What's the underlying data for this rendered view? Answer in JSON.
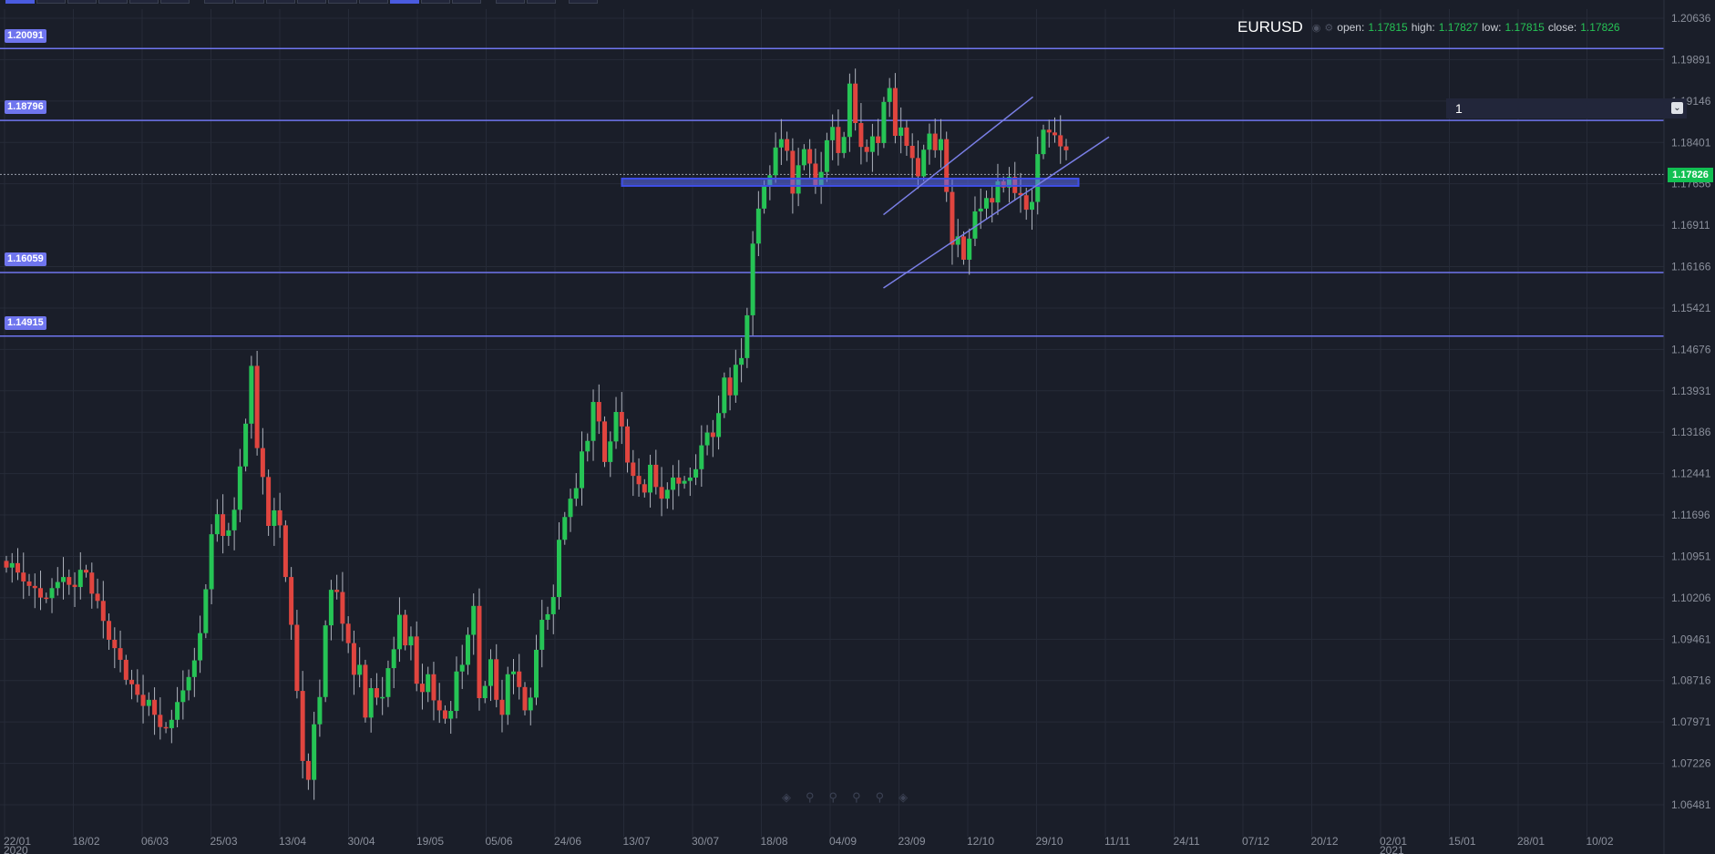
{
  "app": {
    "symbol": "EURUSD",
    "interval_value": "1"
  },
  "ohlc": {
    "open_label": "open:",
    "open": "1.17815",
    "high_label": "high:",
    "high": "1.17827",
    "low_label": "low:",
    "low": "1.17815",
    "close_label": "close:",
    "close": "1.17826"
  },
  "icons": [
    "eye-icon",
    "settings-icon",
    "chevron-down-icon",
    "draw-tool-icon"
  ],
  "colors": {
    "background": "#1a1e29",
    "grid": "#262b38",
    "up": "#26c455",
    "down": "#e0453f",
    "level_line": "#6f75ee",
    "channel_line": "#7a7fe6",
    "zone_fill": "#5b6af0",
    "current_price": "#12c052"
  },
  "levels": [
    {
      "price": 1.20091,
      "label": "1.20091"
    },
    {
      "price": 1.18796,
      "label": "1.18796"
    },
    {
      "price": 1.16059,
      "label": "1.16059"
    },
    {
      "price": 1.14915,
      "label": "1.14915"
    }
  ],
  "current_price": {
    "price": 1.17826,
    "label": "1.17826"
  },
  "chart_data": {
    "type": "candlestick",
    "symbol": "EURUSD",
    "yaxis_ticks": [
      "1.20636",
      "1.19891",
      "1.19146",
      "1.18401",
      "1.17656",
      "1.16911",
      "1.16166",
      "1.15421",
      "1.14676",
      "1.13931",
      "1.13186",
      "1.12441",
      "1.11696",
      "1.10951",
      "1.10206",
      "1.09461",
      "1.08716",
      "1.07971",
      "1.07226",
      "1.06481"
    ],
    "xaxis_ticks": [
      "22/01",
      "18/02",
      "06/03",
      "25/03",
      "13/04",
      "30/04",
      "19/05",
      "05/06",
      "24/06",
      "13/07",
      "30/07",
      "18/08",
      "04/09",
      "23/09",
      "12/10",
      "29/10",
      "11/11",
      "24/11",
      "07/12",
      "20/12",
      "02/01",
      "15/01",
      "28/01",
      "10/02"
    ],
    "year_labels": [
      "2020",
      "2021"
    ],
    "ylim": [
      1.0623,
      1.2088
    ],
    "grid": true,
    "horizontal_levels": [
      1.20091,
      1.18796,
      1.16059,
      1.14915
    ],
    "zone": {
      "from": "13/07",
      "to": "05/11",
      "low": 1.1762,
      "high": 1.1775
    },
    "channel": {
      "upper": [
        {
          "x": "22/09",
          "y": 1.171
        },
        {
          "x": "29/10",
          "y": 1.1922
        }
      ],
      "lower": [
        {
          "x": "22/09",
          "y": 1.1578
        },
        {
          "x": "11/11",
          "y": 1.185
        }
      ]
    },
    "candles_close": [
      1.1075,
      1.1083,
      1.1066,
      1.105,
      1.1042,
      1.1038,
      1.1021,
      1.102,
      1.1038,
      1.1049,
      1.1058,
      1.1044,
      1.104,
      1.1071,
      1.1066,
      1.1028,
      1.1015,
      1.0979,
      1.0945,
      1.093,
      1.0909,
      1.0873,
      1.0865,
      1.0846,
      1.0826,
      1.0837,
      1.081,
      1.0788,
      1.0786,
      1.0801,
      1.0833,
      1.0854,
      1.0878,
      1.0908,
      1.0957,
      1.1036,
      1.1135,
      1.1171,
      1.1132,
      1.1142,
      1.1179,
      1.1257,
      1.1334,
      1.1438,
      1.129,
      1.1238,
      1.115,
      1.1178,
      1.1151,
      1.1058,
      1.0972,
      1.0853,
      1.0727,
      1.0693,
      1.0793,
      1.0842,
      1.0971,
      1.1035,
      1.1031,
      1.0974,
      1.0939,
      1.0882,
      1.09,
      1.0805,
      1.0858,
      1.0841,
      1.0842,
      1.0894,
      1.0928,
      1.099,
      1.0935,
      1.0951,
      1.0866,
      1.0851,
      1.0883,
      1.0836,
      1.0818,
      1.0803,
      1.0817,
      1.0888,
      1.09,
      1.0954,
      1.1006,
      1.084,
      1.0862,
      1.091,
      1.0837,
      1.081,
      1.0883,
      1.0888,
      1.086,
      1.0818,
      1.0841,
      1.0927,
      1.0981,
      1.0991,
      1.1022,
      1.1125,
      1.1166,
      1.1199,
      1.1218,
      1.1284,
      1.1303,
      1.1373,
      1.1338,
      1.1265,
      1.1302,
      1.1355,
      1.1329,
      1.1264,
      1.124,
      1.1225,
      1.121,
      1.126,
      1.122,
      1.1199,
      1.1215,
      1.1237,
      1.1226,
      1.1231,
      1.1237,
      1.1252,
      1.1295,
      1.1318,
      1.131,
      1.1353,
      1.1417,
      1.1385,
      1.144,
      1.1452,
      1.1529,
      1.1658,
      1.1721,
      1.1763,
      1.1781,
      1.1831,
      1.1846,
      1.1825,
      1.1748,
      1.1799,
      1.1828,
      1.1802,
      1.1761,
      1.1787,
      1.1844,
      1.1868,
      1.1821,
      1.185,
      1.1946,
      1.1875,
      1.1832,
      1.1823,
      1.1851,
      1.1839,
      1.1913,
      1.1938,
      1.1852,
      1.1867,
      1.1834,
      1.1812,
      1.1779,
      1.1827,
      1.1856,
      1.1826,
      1.1846,
      1.1751,
      1.1656,
      1.1671,
      1.1629,
      1.1667,
      1.1716,
      1.1721,
      1.174,
      1.1732,
      1.177,
      1.1759,
      1.1778,
      1.1749,
      1.1745,
      1.1719,
      1.1733,
      1.1819,
      1.1863,
      1.1858,
      1.1853,
      1.1833,
      1.1826
    ]
  }
}
